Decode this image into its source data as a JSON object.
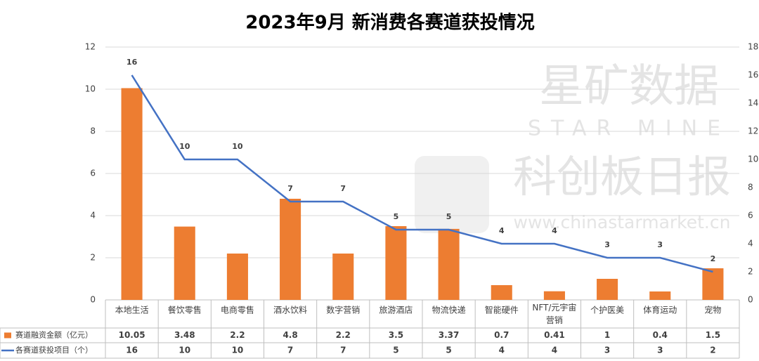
{
  "chart_data": {
    "type": "bar-line",
    "title": "2023年9月 新消费各赛道获投情况",
    "watermark": [
      "星矿数据",
      "STAR MINE",
      "科创板日报",
      "www.chinastarmarket.cn"
    ],
    "categories": [
      "本地生活",
      "餐饮零售",
      "电商零售",
      "酒水饮料",
      "数字营销",
      "旅游酒店",
      "物流快递",
      "智能硬件",
      "NFT/元宇宙营销",
      "个护医美",
      "体育运动",
      "宠物"
    ],
    "series": [
      {
        "name": "赛道融资金额（亿元）",
        "type": "bar",
        "color": "#ed7d31",
        "axis": "y",
        "values": [
          10.05,
          3.48,
          2.2,
          4.8,
          2.2,
          3.5,
          3.37,
          0.7,
          0.41,
          1,
          0.4,
          1.5
        ]
      },
      {
        "name": "各赛道获投项目（个）",
        "type": "line",
        "color": "#4472c4",
        "axis": "y2",
        "values": [
          16,
          10,
          10,
          7,
          7,
          5,
          5,
          4,
          4,
          3,
          3,
          2
        ]
      }
    ],
    "ylim": [
      0,
      12
    ],
    "yticks": [
      0,
      2,
      4,
      6,
      8,
      10,
      12
    ],
    "y2lim": [
      0,
      18
    ],
    "y2ticks": [
      0,
      2,
      4,
      6,
      8,
      10,
      12,
      14,
      16,
      18
    ],
    "grid": true,
    "data_table": true
  }
}
